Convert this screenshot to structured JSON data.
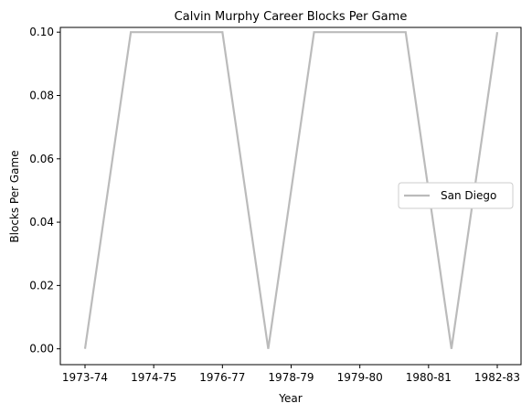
{
  "chart_data": {
    "type": "line",
    "title": "Calvin Murphy Career Blocks Per Game",
    "xlabel": "Year",
    "ylabel": "Blocks Per Game",
    "ylim": [
      -0.005,
      0.1015
    ],
    "x_tick_labels": [
      "1973-74",
      "1974-75",
      "1976-77",
      "1978-79",
      "1979-80",
      "1980-81",
      "1982-83"
    ],
    "y_ticks": [
      0.0,
      0.02,
      0.04,
      0.06,
      0.08,
      0.1
    ],
    "y_tick_labels": [
      "0.00",
      "0.02",
      "0.04",
      "0.06",
      "0.08",
      "0.10"
    ],
    "grid": false,
    "legend_position": "center-right",
    "series": [
      {
        "name": "San Diego",
        "color": "#bbbbbb",
        "values": [
          0.0,
          0.1,
          0.1,
          0.1,
          0.0,
          0.1,
          0.1,
          0.1,
          0.0,
          0.1
        ]
      }
    ]
  }
}
